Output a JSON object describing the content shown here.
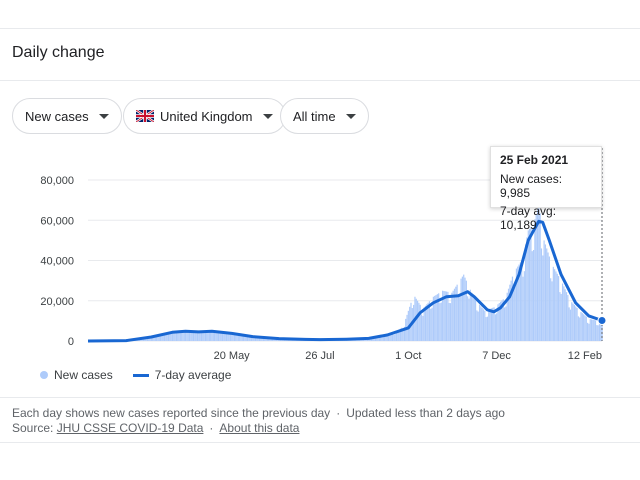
{
  "card": {
    "title": "Daily change"
  },
  "filters": {
    "metric": "New cases",
    "country": "United Kingdom",
    "range": "All time"
  },
  "tooltip": {
    "date": "25 Feb 2021",
    "new_cases_text": "New cases: 9,985",
    "avg_text": "7-day avg: 10,189"
  },
  "legend": {
    "bars": "New cases",
    "line": "7-day average"
  },
  "footer": {
    "line1_a": "Each day shows new cases reported since the previous day",
    "line1_sep": "·",
    "line1_b": "Updated less than 2 days ago",
    "source_label": "Source:",
    "source_link": "JHU CSSE COVID-19 Data",
    "about_link": "About this data"
  },
  "colors": {
    "bars": "#aecbfa",
    "line": "#1967d2",
    "grid": "#e8eaed"
  },
  "chart_data": {
    "type": "bar",
    "title": "",
    "xlabel": "",
    "ylabel": "",
    "ylim": [
      0,
      85000
    ],
    "y_ticks": [
      "80,000",
      "60,000",
      "40,000",
      "20,000",
      "0"
    ],
    "y_tick_values": [
      80000,
      60000,
      40000,
      20000,
      0
    ],
    "x_ticks": [
      "20 May",
      "26 Jul",
      "1 Oct",
      "7 Dec",
      "12 Feb"
    ],
    "x_tick_values": [
      "2020-05-20",
      "2020-07-26",
      "2020-10-01",
      "2020-12-07",
      "2021-02-12"
    ],
    "x_range": [
      "2020-02-01",
      "2021-02-25"
    ],
    "series": [
      {
        "name": "7-day average",
        "kind": "line",
        "points": [
          [
            "2020-02-01",
            0
          ],
          [
            "2020-03-01",
            200
          ],
          [
            "2020-03-20",
            2000
          ],
          [
            "2020-04-05",
            4300
          ],
          [
            "2020-04-15",
            4800
          ],
          [
            "2020-04-25",
            4500
          ],
          [
            "2020-05-05",
            4800
          ],
          [
            "2020-05-20",
            3800
          ],
          [
            "2020-06-05",
            2200
          ],
          [
            "2020-06-25",
            1200
          ],
          [
            "2020-07-15",
            800
          ],
          [
            "2020-07-26",
            700
          ],
          [
            "2020-08-15",
            900
          ],
          [
            "2020-09-01",
            1300
          ],
          [
            "2020-09-15",
            3000
          ],
          [
            "2020-10-01",
            6500
          ],
          [
            "2020-10-10",
            14000
          ],
          [
            "2020-10-20",
            19000
          ],
          [
            "2020-10-30",
            22000
          ],
          [
            "2020-11-08",
            22500
          ],
          [
            "2020-11-15",
            24500
          ],
          [
            "2020-11-20",
            22000
          ],
          [
            "2020-11-30",
            15500
          ],
          [
            "2020-12-05",
            14500
          ],
          [
            "2020-12-10",
            16500
          ],
          [
            "2020-12-17",
            22000
          ],
          [
            "2020-12-24",
            33000
          ],
          [
            "2020-12-31",
            50000
          ],
          [
            "2021-01-08",
            59500
          ],
          [
            "2021-01-11",
            59000
          ],
          [
            "2021-01-16",
            50000
          ],
          [
            "2021-01-25",
            33000
          ],
          [
            "2021-02-05",
            19000
          ],
          [
            "2021-02-15",
            12500
          ],
          [
            "2021-02-25",
            10189
          ]
        ]
      },
      {
        "name": "New cases",
        "kind": "bar",
        "points": [
          [
            "2020-09-20",
            4000
          ],
          [
            "2020-09-27",
            7000
          ],
          [
            "2020-10-05",
            23000
          ],
          [
            "2020-10-12",
            16000
          ],
          [
            "2020-10-20",
            22000
          ],
          [
            "2020-10-27",
            25000
          ],
          [
            "2020-11-03",
            24000
          ],
          [
            "2020-11-12",
            33000
          ],
          [
            "2020-11-20",
            21000
          ],
          [
            "2020-11-28",
            15000
          ],
          [
            "2020-12-06",
            17000
          ],
          [
            "2020-12-14",
            22000
          ],
          [
            "2020-12-20",
            34000
          ],
          [
            "2020-12-27",
            41000
          ],
          [
            "2020-12-31",
            55000
          ],
          [
            "2021-01-04",
            58000
          ],
          [
            "2021-01-08",
            68000
          ],
          [
            "2021-01-12",
            50000
          ],
          [
            "2021-01-18",
            38000
          ],
          [
            "2021-01-25",
            30000
          ],
          [
            "2021-02-01",
            20000
          ],
          [
            "2021-02-08",
            15000
          ],
          [
            "2021-02-15",
            11000
          ],
          [
            "2021-02-22",
            10000
          ],
          [
            "2021-02-25",
            9985
          ]
        ]
      }
    ],
    "highlight_date": "2021-02-25",
    "legend_position": "bottom-left",
    "grid": true
  }
}
